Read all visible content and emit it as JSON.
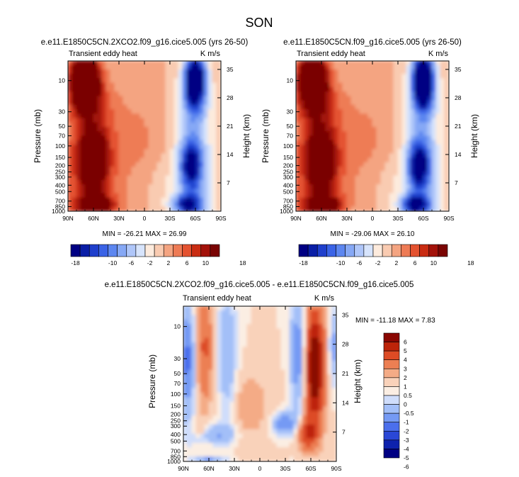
{
  "figure_title": "SON",
  "colors": {
    "ramp_18": [
      "#000083",
      "#0a1ea6",
      "#1f3fcc",
      "#3a63e6",
      "#5c86f0",
      "#86a8f5",
      "#afc6f9",
      "#d7e4fc",
      "#fdebdd",
      "#f9cbb1",
      "#f4a481",
      "#ee7b55",
      "#e45230",
      "#c92c12",
      "#a3120a",
      "#7a0403"
    ],
    "ramp_diff": [
      "#000083",
      "#0e22ad",
      "#2a47d6",
      "#4b6fec",
      "#759af4",
      "#a3bff8",
      "#cfddfb",
      "#fbeee3",
      "#f9d2ba",
      "#f4ab86",
      "#ec7f53",
      "#dd4b25",
      "#bd2409",
      "#8a0702"
    ]
  },
  "chart_data": [
    {
      "type": "heatmap",
      "title": "e.e11.E1850C5CN.2XCO2.f09_g16.cice5.005 (yrs 26-50)",
      "subtitle_left": "Transient eddy heat",
      "subtitle_right": "K m/s",
      "xlabel": "",
      "ylabel": "Pressure (mb)",
      "ylabel_right": "Height (km)",
      "x_ticks": [
        "90N",
        "60N",
        "30N",
        "0",
        "30S",
        "60S",
        "90S"
      ],
      "x_tick_values": [
        90,
        60,
        30,
        0,
        -30,
        -60,
        -90
      ],
      "xlim": [
        90,
        -90
      ],
      "y_ticks": [
        "10",
        "30",
        "50",
        "70",
        "100",
        "150",
        "200",
        "250",
        "300",
        "400",
        "500",
        "700",
        "850",
        "1000"
      ],
      "y_tick_values": [
        10,
        30,
        50,
        70,
        100,
        150,
        200,
        250,
        300,
        400,
        500,
        700,
        850,
        1000
      ],
      "ylim": [
        5,
        1000
      ],
      "y_scale": "log",
      "height_ticks": [
        "35",
        "28",
        "21",
        "14",
        "7"
      ],
      "height_tick_values": [
        35,
        28,
        21,
        14,
        7
      ],
      "min_label": "MIN = -26.21   MAX = 26.99",
      "min": -26.21,
      "max": 26.99,
      "field": {
        "nh_pos": {
          "lat": 70,
          "amp": 27,
          "core_p": 10
        },
        "sh_neg": {
          "lat": -60,
          "amp": -26,
          "core_p": 10
        },
        "tropical_pos": {
          "lat": 0,
          "amp": 2
        }
      },
      "colorbar": {
        "levels": [
          -18,
          -16,
          -14,
          -12,
          -10,
          -8,
          -6,
          -4,
          -2,
          0,
          2,
          4,
          6,
          8,
          10,
          12,
          14,
          16,
          18
        ],
        "labels": [
          "-18",
          "-10",
          "-6",
          "-2",
          "2",
          "6",
          "10",
          "18"
        ],
        "orientation": "horizontal"
      }
    },
    {
      "type": "heatmap",
      "title": "e.e11.E1850C5CN.f09_g16.cice5.005 (yrs 26-50)",
      "subtitle_left": "Transient eddy heat",
      "subtitle_right": "K m/s",
      "xlabel": "",
      "ylabel": "Pressure (mb)",
      "ylabel_right": "Height (km)",
      "x_ticks": [
        "90N",
        "60N",
        "30N",
        "0",
        "30S",
        "60S",
        "90S"
      ],
      "x_tick_values": [
        90,
        60,
        30,
        0,
        -30,
        -60,
        -90
      ],
      "xlim": [
        90,
        -90
      ],
      "y_ticks": [
        "10",
        "30",
        "50",
        "70",
        "100",
        "150",
        "200",
        "250",
        "300",
        "400",
        "500",
        "700",
        "850",
        "1000"
      ],
      "y_tick_values": [
        10,
        30,
        50,
        70,
        100,
        150,
        200,
        250,
        300,
        400,
        500,
        700,
        850,
        1000
      ],
      "ylim": [
        5,
        1000
      ],
      "y_scale": "log",
      "height_ticks": [
        "35",
        "28",
        "21",
        "14",
        "7"
      ],
      "height_tick_values": [
        35,
        28,
        21,
        14,
        7
      ],
      "min_label": "MIN = -29.06   MAX = 26.10",
      "min": -29.06,
      "max": 26.1,
      "field": {
        "nh_pos": {
          "lat": 70,
          "amp": 26,
          "core_p": 10
        },
        "sh_neg": {
          "lat": -60,
          "amp": -29,
          "core_p": 10
        },
        "tropical_pos": {
          "lat": 0,
          "amp": 2
        }
      },
      "colorbar": {
        "levels": [
          -18,
          -16,
          -14,
          -12,
          -10,
          -8,
          -6,
          -4,
          -2,
          0,
          2,
          4,
          6,
          8,
          10,
          12,
          14,
          16,
          18
        ],
        "labels": [
          "-18",
          "-10",
          "-6",
          "-2",
          "2",
          "6",
          "10",
          "18"
        ],
        "orientation": "horizontal"
      }
    },
    {
      "type": "heatmap",
      "title": "e.e11.E1850C5CN.2XCO2.f09_g16.cice5.005 - e.e11.E1850C5CN.f09_g16.cice5.005",
      "subtitle_left": "Transient eddy heat",
      "subtitle_right": "K m/s",
      "xlabel": "",
      "ylabel": "Pressure (mb)",
      "ylabel_right": "Height (km)",
      "x_ticks": [
        "90N",
        "60N",
        "30N",
        "0",
        "30S",
        "60S",
        "90S"
      ],
      "x_tick_values": [
        90,
        60,
        30,
        0,
        -30,
        -60,
        -90
      ],
      "xlim": [
        90,
        -90
      ],
      "y_ticks": [
        "10",
        "30",
        "50",
        "70",
        "100",
        "150",
        "200",
        "250",
        "300",
        "400",
        "500",
        "700",
        "850",
        "1000"
      ],
      "y_tick_values": [
        10,
        30,
        50,
        70,
        100,
        150,
        200,
        250,
        300,
        400,
        500,
        700,
        850,
        1000
      ],
      "ylim": [
        5,
        1000
      ],
      "y_scale": "log",
      "height_ticks": [
        "35",
        "28",
        "21",
        "14",
        "7"
      ],
      "height_tick_values": [
        35,
        28,
        21,
        14,
        7
      ],
      "min_label": "MIN = -11.18   MAX =   7.83",
      "min": -11.18,
      "max": 7.83,
      "colorbar": {
        "levels": [
          -6,
          -5,
          -4,
          -3,
          -2,
          -1,
          -0.5,
          0,
          0.5,
          1,
          2,
          3,
          4,
          5,
          6
        ],
        "labels": [
          "6",
          "5",
          "4",
          "3",
          "2",
          "1",
          "0.5",
          "0",
          "-0.5",
          "-1",
          "-2",
          "-3",
          "-4",
          "-5",
          "-6"
        ],
        "orientation": "vertical"
      }
    }
  ]
}
